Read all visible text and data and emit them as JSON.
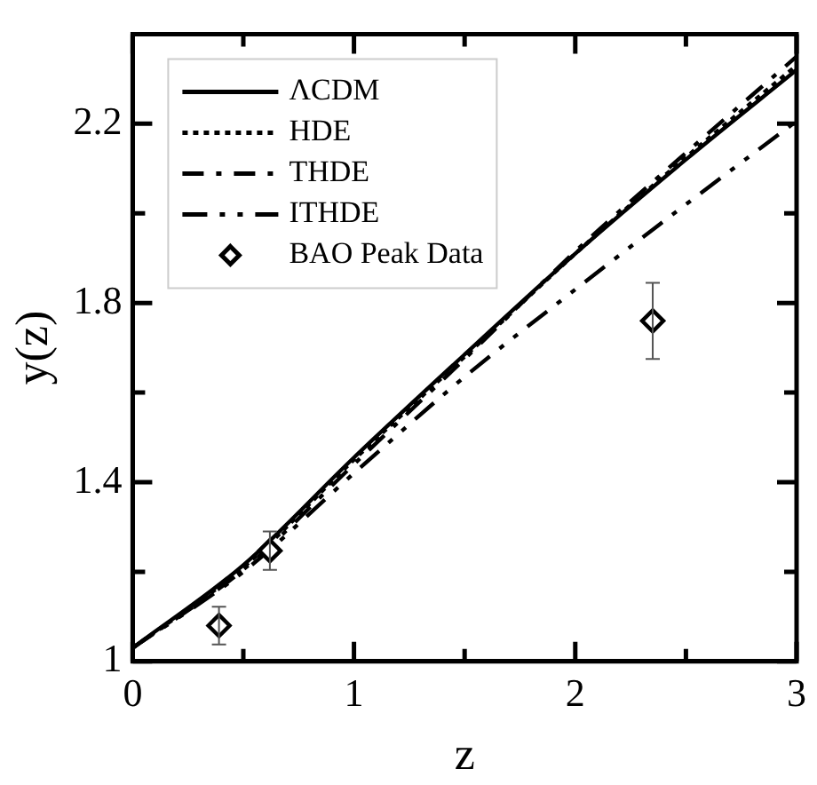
{
  "chart_data": {
    "type": "line",
    "xlabel": "z",
    "ylabel": "y(z)",
    "xlim": [
      0,
      3
    ],
    "xticks": [
      0,
      {
        "value": 0.5,
        "label": null
      },
      1,
      {
        "value": 1.5,
        "label": null
      },
      2,
      {
        "value": 2.5,
        "label": null
      },
      3
    ],
    "ylim": [
      1,
      2.4
    ],
    "yticks": [
      1,
      {
        "value": 1.2,
        "label": null
      },
      1.4,
      {
        "value": 1.6,
        "label": null
      },
      1.8,
      {
        "value": 2.0,
        "label": null
      },
      2.2
    ],
    "grid": false,
    "legend": "top left",
    "series": [
      {
        "name": "ΛCDM",
        "color": "#000000",
        "line_style": "solid",
        "x": [
          0,
          0.5,
          1,
          1.5,
          2,
          2.5,
          3
        ],
        "values": [
          1.03,
          1.215,
          1.455,
          1.685,
          1.91,
          2.12,
          2.32
        ]
      },
      {
        "name": "HDE",
        "color": "#000000",
        "line_style": "dotted",
        "x": [
          0,
          0.5,
          1,
          1.5,
          2,
          2.5,
          3
        ],
        "values": [
          1.03,
          1.21,
          1.45,
          1.68,
          1.91,
          2.125,
          2.33
        ]
      },
      {
        "name": "THDE",
        "color": "#000000",
        "line_style": "dashdot",
        "x": [
          0,
          0.5,
          1,
          1.5,
          2,
          2.5,
          3
        ],
        "values": [
          1.03,
          1.205,
          1.44,
          1.675,
          1.915,
          2.135,
          2.35
        ]
      },
      {
        "name": "ITHDE",
        "color": "#000000",
        "line_style": "dashdotdot",
        "x": [
          0,
          0.5,
          1,
          1.5,
          2,
          2.5,
          3
        ],
        "values": [
          1.03,
          1.2,
          1.42,
          1.635,
          1.83,
          2.02,
          2.206
        ]
      },
      {
        "name": "BAO Peak Data",
        "type": "scatter",
        "color": "#000000",
        "marker": "diamond",
        "x": [
          0.39,
          0.62,
          2.35
        ],
        "values": [
          1.08,
          1.247,
          1.76
        ],
        "errors": [
          0.042,
          0.043,
          0.085
        ]
      }
    ]
  }
}
